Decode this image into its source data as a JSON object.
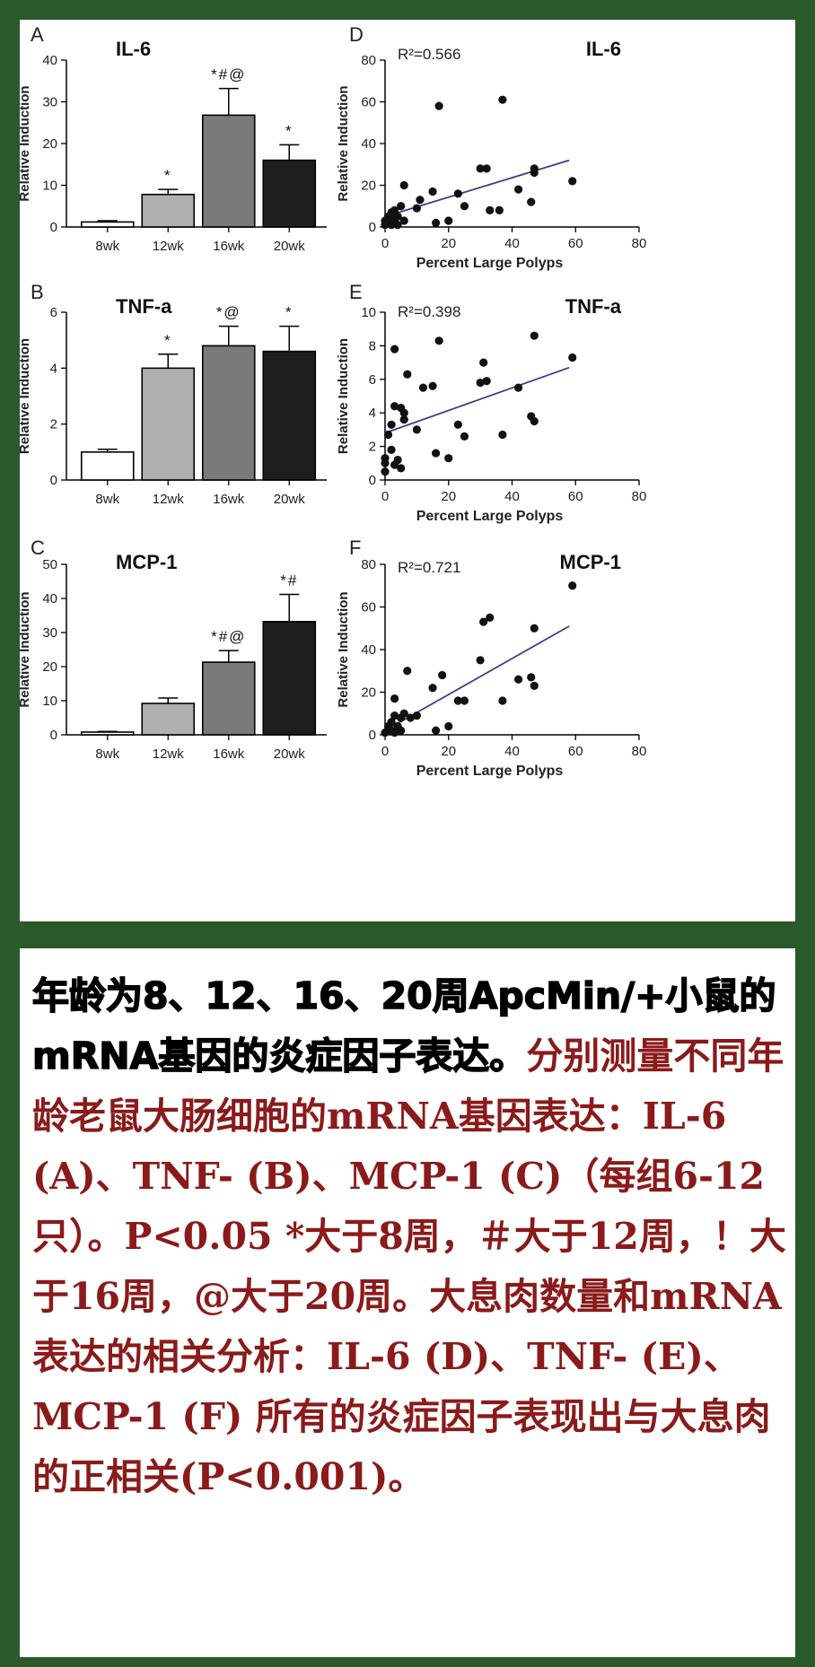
{
  "chart_data": [
    {
      "type": "bar",
      "panel_letter": "A",
      "title": "IL-6",
      "categories": [
        "8wk",
        "12wk",
        "16wk",
        "20wk"
      ],
      "values": [
        1.2,
        7.8,
        26.8,
        16.0
      ],
      "errors": [
        0.3,
        1.2,
        6.4,
        3.7
      ],
      "sig": [
        "",
        "*",
        "*#@",
        "*"
      ],
      "bar_colors": [
        "#ffffff",
        "#b0b0b0",
        "#7a7a7a",
        "#1e1e1e"
      ],
      "ylabel": "Relative  Induction",
      "ylim": [
        0,
        40
      ],
      "yticks": [
        "0",
        "10",
        "20",
        "30",
        "40"
      ]
    },
    {
      "type": "scatter",
      "panel_letter": "D",
      "title": "IL-6",
      "annotation": "R²=0.566",
      "xlabel": "Percent Large Polyps",
      "ylabel": "Relative  Induction",
      "xlim": [
        0,
        80
      ],
      "ylim": [
        0,
        80
      ],
      "xticks": [
        "0",
        "20",
        "40",
        "60",
        "80"
      ],
      "yticks": [
        "0",
        "20",
        "40",
        "60",
        "80"
      ],
      "fit": {
        "x": [
          0,
          58
        ],
        "y": [
          5,
          32
        ]
      },
      "points": [
        [
          0,
          1
        ],
        [
          0,
          3
        ],
        [
          1,
          2
        ],
        [
          1,
          5
        ],
        [
          2,
          1
        ],
        [
          2,
          4
        ],
        [
          2,
          7
        ],
        [
          3,
          2
        ],
        [
          3,
          8
        ],
        [
          4,
          1
        ],
        [
          4,
          5
        ],
        [
          5,
          10
        ],
        [
          6,
          3
        ],
        [
          6,
          20
        ],
        [
          10,
          9
        ],
        [
          11,
          13
        ],
        [
          15,
          17
        ],
        [
          16,
          2
        ],
        [
          17,
          58
        ],
        [
          20,
          3
        ],
        [
          23,
          16
        ],
        [
          25,
          10
        ],
        [
          30,
          28
        ],
        [
          32,
          28
        ],
        [
          33,
          8
        ],
        [
          36,
          8
        ],
        [
          37,
          61
        ],
        [
          42,
          18
        ],
        [
          46,
          12
        ],
        [
          47,
          26
        ],
        [
          47,
          28
        ],
        [
          59,
          22
        ]
      ]
    },
    {
      "type": "bar",
      "panel_letter": "B",
      "title": "TNF-a",
      "categories": [
        "8wk",
        "12wk",
        "16wk",
        "20wk"
      ],
      "values": [
        1.0,
        4.0,
        4.8,
        4.6
      ],
      "errors": [
        0.1,
        0.5,
        0.7,
        0.9
      ],
      "sig": [
        "",
        "*",
        "*@",
        "*"
      ],
      "bar_colors": [
        "#ffffff",
        "#b0b0b0",
        "#7a7a7a",
        "#1e1e1e"
      ],
      "ylabel": "Relative  Induction",
      "ylim": [
        0,
        6
      ],
      "yticks": [
        "0",
        "2",
        "4",
        "6"
      ]
    },
    {
      "type": "scatter",
      "panel_letter": "E",
      "title": "TNF-a",
      "annotation": "R²=0.398",
      "xlabel": "Percent Large Polyps",
      "ylabel": "Relative  Induction",
      "xlim": [
        0,
        80
      ],
      "ylim": [
        0,
        10
      ],
      "xticks": [
        "0",
        "20",
        "40",
        "60",
        "80"
      ],
      "yticks": [
        "0",
        "2",
        "4",
        "6",
        "8",
        "10"
      ],
      "fit": {
        "x": [
          0,
          58
        ],
        "y": [
          2.8,
          6.7
        ]
      },
      "points": [
        [
          0,
          0.5
        ],
        [
          0,
          1
        ],
        [
          0,
          1.3
        ],
        [
          1,
          2.7
        ],
        [
          2,
          1.8
        ],
        [
          2,
          3.3
        ],
        [
          3,
          0.9
        ],
        [
          3,
          4.4
        ],
        [
          3,
          7.8
        ],
        [
          4,
          1.2
        ],
        [
          5,
          0.7
        ],
        [
          5,
          4.3
        ],
        [
          6,
          3.6
        ],
        [
          6,
          4
        ],
        [
          7,
          6.3
        ],
        [
          10,
          3
        ],
        [
          12,
          5.5
        ],
        [
          15,
          5.6
        ],
        [
          16,
          1.6
        ],
        [
          17,
          8.3
        ],
        [
          20,
          1.3
        ],
        [
          23,
          3.3
        ],
        [
          25,
          2.6
        ],
        [
          30,
          5.8
        ],
        [
          31,
          7
        ],
        [
          32,
          5.9
        ],
        [
          37,
          2.7
        ],
        [
          42,
          5.5
        ],
        [
          46,
          3.8
        ],
        [
          47,
          3.5
        ],
        [
          47,
          8.6
        ],
        [
          59,
          7.3
        ]
      ]
    },
    {
      "type": "bar",
      "panel_letter": "C",
      "title": "MCP-1",
      "categories": [
        "8wk",
        "12wk",
        "16wk",
        "20wk"
      ],
      "values": [
        0.8,
        9.2,
        21.3,
        33.2
      ],
      "errors": [
        0.2,
        1.6,
        3.4,
        8.0
      ],
      "sig": [
        "",
        "",
        "*#@",
        "*#"
      ],
      "bar_colors": [
        "#ffffff",
        "#b0b0b0",
        "#7a7a7a",
        "#1e1e1e"
      ],
      "ylabel": "Relative  Induction",
      "ylim": [
        0,
        50
      ],
      "yticks": [
        "0",
        "10",
        "20",
        "30",
        "40",
        "50"
      ]
    },
    {
      "type": "scatter",
      "panel_letter": "F",
      "title": "MCP-1",
      "annotation": "R²=0.721",
      "xlabel": "Percent Large Polyps",
      "ylabel": "Relative  Induction",
      "xlim": [
        0,
        80
      ],
      "ylim": [
        0,
        80
      ],
      "xticks": [
        "0",
        "20",
        "40",
        "60",
        "80"
      ],
      "yticks": [
        "0",
        "20",
        "40",
        "60",
        "80"
      ],
      "fit": {
        "x": [
          0,
          58
        ],
        "y": [
          2,
          51
        ]
      },
      "points": [
        [
          0,
          1
        ],
        [
          1,
          4
        ],
        [
          2,
          2
        ],
        [
          2,
          6
        ],
        [
          3,
          1
        ],
        [
          3,
          9
        ],
        [
          3,
          17
        ],
        [
          4,
          4
        ],
        [
          5,
          2
        ],
        [
          5,
          8
        ],
        [
          6,
          10
        ],
        [
          7,
          30
        ],
        [
          8,
          8
        ],
        [
          10,
          9
        ],
        [
          15,
          22
        ],
        [
          16,
          2
        ],
        [
          18,
          28
        ],
        [
          20,
          4
        ],
        [
          23,
          16
        ],
        [
          25,
          16
        ],
        [
          30,
          35
        ],
        [
          31,
          53
        ],
        [
          33,
          55
        ],
        [
          37,
          16
        ],
        [
          42,
          26
        ],
        [
          46,
          27
        ],
        [
          47,
          23
        ],
        [
          47,
          50
        ],
        [
          59,
          70
        ]
      ]
    }
  ],
  "caption": {
    "black_part": "年龄为8、12、16、20周ApcMin/+小鼠的mRNA基因的炎症因子表达。",
    "red_part": "分别测量不同年龄老鼠大肠细胞的mRNA基因表达：IL-6 (A)、TNF- (B)、MCP-1 (C)（每组6-12只）。P<0.05 *大于8周，＃大于12周，！大于16周，@大于20周。大息肉数量和mRNA表达的相关分析：IL-6 (D)、TNF- (E)、MCP-1 (F) 所有的炎症因子表现出与大息肉的正相关(P<0.001)。"
  }
}
